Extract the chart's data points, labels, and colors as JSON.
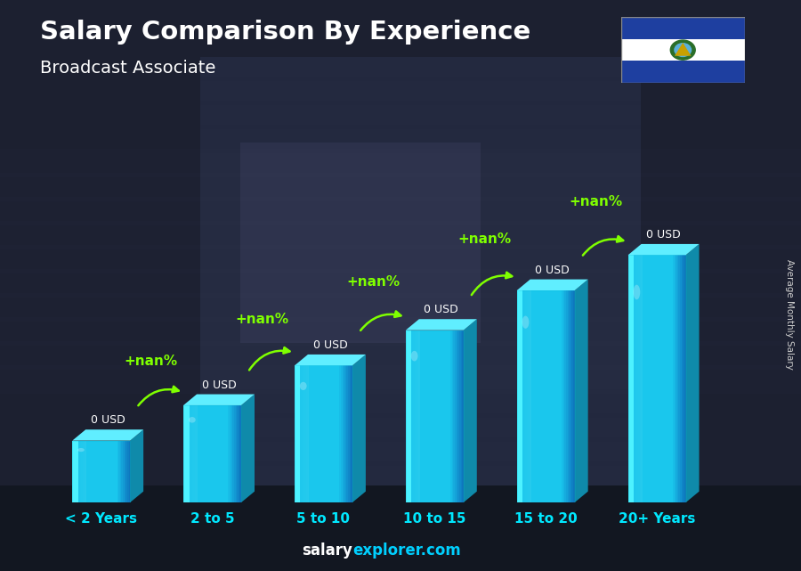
{
  "title": "Salary Comparison By Experience",
  "subtitle": "Broadcast Associate",
  "ylabel": "Average Monthly Salary",
  "categories": [
    "< 2 Years",
    "2 to 5",
    "5 to 10",
    "10 to 15",
    "15 to 20",
    "20+ Years"
  ],
  "value_labels": [
    "0 USD",
    "0 USD",
    "0 USD",
    "0 USD",
    "0 USD",
    "0 USD"
  ],
  "pct_labels": [
    "+nan%",
    "+nan%",
    "+nan%",
    "+nan%",
    "+nan%"
  ],
  "bar_heights": [
    1.4,
    2.2,
    3.1,
    3.9,
    4.8,
    5.6
  ],
  "bar_face_color": "#1ac8ed",
  "bar_left_color": "#3de0ff",
  "bar_right_color": "#0f8aaa",
  "bar_top_color": "#60eeff",
  "bar_dark_color": "#0b6e8f",
  "title_color": "#ffffff",
  "subtitle_color": "#ffffff",
  "label_color": "#00e8ff",
  "value_color": "#ffffff",
  "pct_color": "#7fff00",
  "arrow_color": "#7fff00",
  "bg_color": "#2a3040",
  "watermark_white": "salary",
  "watermark_cyan": "explorer.com",
  "watermark_color_white": "#ffffff",
  "watermark_color_cyan": "#00d0ff",
  "figsize": [
    9.0,
    6.41
  ],
  "flag_blue": "#1e3fa0",
  "flag_white": "#ffffff"
}
